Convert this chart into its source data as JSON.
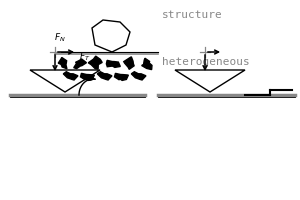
{
  "bg_color": "#ffffff",
  "text_color": "#888888",
  "text_structure": "structure",
  "text_heterogeneous": "heterogeneous",
  "figsize": [
    3.0,
    2.0
  ],
  "dpi": 100,
  "line_color": "#888888"
}
